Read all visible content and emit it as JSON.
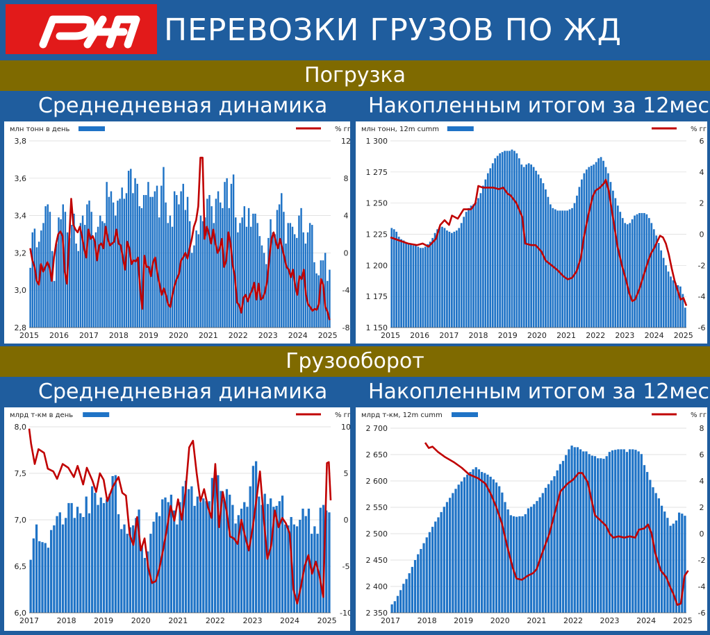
{
  "header": {
    "title": "ПЕРЕВОЗКИ ГРУЗОВ ПО ЖД",
    "logo_text": "РЖД"
  },
  "sections": [
    {
      "title": "Погрузка",
      "left_title": "Среднедневная динамика",
      "right_title": "Накопленным итогом за 12мес"
    },
    {
      "title": "Грузооборот",
      "left_title": "Среднедневная динамика",
      "right_title": "Накопленным итогом за 12мес"
    }
  ],
  "colors": {
    "bar": "#1f73c6",
    "line": "#c00000",
    "band": "#7f6a00",
    "header": "#1f5d9e",
    "logo": "#e21a1a"
  },
  "chart_data": [
    {
      "type": "bar",
      "title": "",
      "legend": {
        "bar": "млн тонн в день",
        "line": "% гг"
      },
      "x_ticks": [
        "2015",
        "2016",
        "2017",
        "2018",
        "2019",
        "2020",
        "2021",
        "2022",
        "2023",
        "2024",
        "2025"
      ],
      "x_range": [
        2015,
        2025.1
      ],
      "y_left": {
        "min": 2.8,
        "max": 3.8,
        "ticks": [
          "2,8",
          "3,0",
          "3,2",
          "3,4",
          "3,6",
          "3,8"
        ]
      },
      "y_right": {
        "min": -8,
        "max": 12,
        "ticks": [
          "-8",
          "-4",
          "0",
          "4",
          "8",
          "12"
        ]
      },
      "bar_values": [
        3.12,
        3.31,
        3.33,
        3.23,
        3.26,
        3.32,
        3.36,
        3.45,
        3.46,
        3.42,
        3.21,
        3.05,
        3.25,
        3.39,
        3.38,
        3.46,
        3.42,
        3.31,
        3.28,
        3.35,
        3.41,
        3.25,
        3.21,
        3.36,
        3.4,
        3.35,
        3.46,
        3.48,
        3.42,
        3.27,
        3.31,
        3.34,
        3.4,
        3.37,
        3.36,
        3.58,
        3.5,
        3.53,
        3.47,
        3.4,
        3.48,
        3.49,
        3.55,
        3.49,
        3.52,
        3.64,
        3.65,
        3.52,
        3.6,
        3.57,
        3.45,
        3.44,
        3.51,
        3.51,
        3.58,
        3.5,
        3.5,
        3.53,
        3.56,
        3.39,
        3.56,
        3.66,
        3.47,
        3.36,
        3.4,
        3.34,
        3.53,
        3.51,
        3.46,
        3.53,
        3.57,
        3.43,
        3.5,
        3.37,
        3.2,
        3.24,
        3.32,
        3.3,
        3.4,
        3.37,
        3.39,
        3.49,
        3.51,
        3.45,
        3.36,
        3.49,
        3.53,
        3.47,
        3.44,
        3.58,
        3.6,
        3.44,
        3.57,
        3.62,
        3.39,
        3.31,
        3.36,
        3.39,
        3.45,
        3.34,
        3.44,
        3.34,
        3.41,
        3.41,
        3.36,
        3.29,
        3.24,
        3.2,
        3.14,
        3.28,
        3.38,
        3.31,
        3.3,
        3.43,
        3.46,
        3.52,
        3.42,
        3.25,
        3.36,
        3.36,
        3.34,
        3.3,
        3.28,
        3.4,
        3.44,
        3.31,
        3.25,
        3.31,
        3.36,
        3.35,
        3.15,
        3.09,
        3.08,
        3.16,
        3.16,
        3.2,
        3.05,
        3.11
      ],
      "line_values": [
        0.5,
        -0.8,
        -1.5,
        -3,
        -3.4,
        -1.2,
        -2,
        -1.5,
        -1,
        -1.6,
        -3,
        -0.5,
        1,
        2,
        2.3,
        1.8,
        -2,
        -3.3,
        1,
        5.8,
        3,
        2.5,
        2.2,
        2.8,
        1.8,
        0.5,
        -0.5,
        2.5,
        1.5,
        1.8,
        1.2,
        -0.8,
        0.8,
        1,
        0.5,
        2.8,
        1.5,
        0.8,
        1,
        1.2,
        2.5,
        1,
        0.8,
        -0.5,
        -1.8,
        1.2,
        0.5,
        -1.2,
        -0.8,
        -0.9,
        -0.5,
        -3.8,
        -6,
        -0.3,
        -1.5,
        -1.5,
        -2.5,
        -1,
        -0.5,
        -2.2,
        -3.3,
        -4.5,
        -3.8,
        -4.5,
        -5.5,
        -5.8,
        -4.5,
        -3.5,
        -2.8,
        -2.3,
        -0.8,
        -0.5,
        0,
        -0.6,
        0.5,
        1.5,
        2.8,
        3.5,
        5,
        10.2,
        10.2,
        1.5,
        2.8,
        2,
        1,
        2.5,
        1,
        0,
        0.5,
        1.5,
        -1.5,
        -0.8,
        2.2,
        1,
        -1.3,
        -2.5,
        -5.3,
        -5.6,
        -6.4,
        -4.8,
        -4.5,
        -5.2,
        -4.5,
        -4,
        -3.2,
        -5,
        -3.3,
        -5,
        -4.8,
        -4.2,
        -3,
        -0.5,
        1.5,
        2.2,
        1.2,
        0.5,
        1.5,
        0.5,
        -0.5,
        -1.5,
        -1.8,
        -2.6,
        -1.8,
        -3.5,
        -4.5,
        -2.5,
        -2.8,
        -1.8,
        -4.5,
        -5.5,
        -5.8,
        -6.2,
        -6,
        -6.1,
        -5.5,
        -2.8,
        -3.4,
        -5.8,
        -6.3,
        -7.2
      ]
    },
    {
      "type": "bar",
      "title": "",
      "legend": {
        "bar": "млн  тонн, 12m cumm",
        "line": "% гг"
      },
      "x_ticks": [
        "2015",
        "2016",
        "2017",
        "2018",
        "2019",
        "2020",
        "2021",
        "2022",
        "2023",
        "2024",
        "2025"
      ],
      "x_range": [
        2015,
        2025.1
      ],
      "y_left": {
        "min": 1150,
        "max": 1300,
        "ticks": [
          "1 150",
          "1 175",
          "1 200",
          "1 225",
          "1 250",
          "1 275",
          "1 300"
        ]
      },
      "y_right": {
        "min": -6,
        "max": 6,
        "ticks": [
          "-6",
          "-4",
          "-2",
          "0",
          "2",
          "4",
          "6"
        ]
      },
      "bar_values": [
        1230,
        1229,
        1227,
        1223,
        1221,
        1220,
        1218,
        1218,
        1217,
        1216,
        1216,
        1215,
        1214,
        1214,
        1215,
        1217,
        1219,
        1222,
        1226,
        1229,
        1231,
        1231,
        1230,
        1228,
        1227,
        1226,
        1227,
        1228,
        1230,
        1234,
        1239,
        1243,
        1246,
        1248,
        1249,
        1251,
        1254,
        1258,
        1264,
        1269,
        1274,
        1278,
        1282,
        1286,
        1288,
        1290,
        1291,
        1292,
        1292,
        1292,
        1293,
        1292,
        1290,
        1286,
        1281,
        1279,
        1281,
        1282,
        1281,
        1279,
        1276,
        1273,
        1270,
        1266,
        1261,
        1255,
        1249,
        1246,
        1245,
        1244,
        1244,
        1244,
        1244,
        1244,
        1245,
        1246,
        1250,
        1256,
        1263,
        1269,
        1274,
        1277,
        1279,
        1280,
        1281,
        1283,
        1286,
        1287,
        1284,
        1279,
        1274,
        1267,
        1260,
        1254,
        1248,
        1243,
        1238,
        1234,
        1233,
        1234,
        1237,
        1240,
        1241,
        1242,
        1242,
        1242,
        1241,
        1238,
        1234,
        1229,
        1224,
        1218,
        1212,
        1206,
        1200,
        1195,
        1191,
        1188,
        1186,
        1184,
        1183,
        1177,
        1166
      ]
    },
    {
      "type": "bar",
      "title": "",
      "legend": {
        "bar": "млрд т-км в день",
        "line": "% гг"
      },
      "x_ticks": [
        "2017",
        "2018",
        "2019",
        "2020",
        "2021",
        "2022",
        "2023",
        "2024",
        "2025"
      ],
      "x_range": [
        2017,
        2025.1
      ],
      "y_left": {
        "min": 6.0,
        "max": 8.0,
        "ticks": [
          "6,0",
          "6,5",
          "7,0",
          "7,5",
          "8,0"
        ]
      },
      "y_right": {
        "min": -10,
        "max": 10,
        "ticks": [
          "-10",
          "-5",
          "0",
          "5",
          "10"
        ]
      },
      "bar_values": [
        6.57,
        6.8,
        6.95,
        6.77,
        6.76,
        6.75,
        6.7,
        6.89,
        6.94,
        7.04,
        7.08,
        6.95,
        7.02,
        7.18,
        7.18,
        7.02,
        7.14,
        7.07,
        7.03,
        7.25,
        7.07,
        7.36,
        7.29,
        7.16,
        7.24,
        7.18,
        7.22,
        7.28,
        7.47,
        7.48,
        7.06,
        6.9,
        6.95,
        6.85,
        6.92,
        6.94,
        7.02,
        7.11,
        6.71,
        6.59,
        6.66,
        6.85,
        6.98,
        7.08,
        7.04,
        7.22,
        7.24,
        7.19,
        7.27,
        7.1,
        6.95,
        7.19,
        7.36,
        7.42,
        7.33,
        7.36,
        7.15,
        7.25,
        7.19,
        7.23,
        7.2,
        7.2,
        7.45,
        7.52,
        7.48,
        7.31,
        7.22,
        7.33,
        7.27,
        7.16,
        6.96,
        7.05,
        7.12,
        7.19,
        7.14,
        7.36,
        7.58,
        7.63,
        7.25,
        7.16,
        7.28,
        7.17,
        7.23,
        7.14,
        7.15,
        7.2,
        7.26,
        6.95,
        6.94,
        7.03,
        6.95,
        6.93,
        7.0,
        7.12,
        7.04,
        7.12,
        6.85,
        6.93,
        6.85,
        7.13,
        7.16,
        7.1,
        7.08
      ]
    },
    {
      "type": "bar",
      "title": "",
      "legend": {
        "bar": "млрд  т-км, 12m cumm",
        "line": "% гг"
      },
      "x_ticks": [
        "2017",
        "2018",
        "2019",
        "2020",
        "2021",
        "2022",
        "2023",
        "2024",
        "2025"
      ],
      "x_range": [
        2017,
        2025.1
      ],
      "y_left": {
        "min": 2350,
        "max": 2700,
        "ticks": [
          "2 350",
          "2 400",
          "2 450",
          "2 500",
          "2 550",
          "2 600",
          "2 650",
          "2 700"
        ]
      },
      "y_right": {
        "min": -6,
        "max": 8,
        "ticks": [
          "-6",
          "-4",
          "-2",
          "0",
          "2",
          "4",
          "6",
          "8"
        ]
      },
      "bar_values": [
        2366,
        2372,
        2382,
        2393,
        2405,
        2414,
        2425,
        2437,
        2450,
        2461,
        2471,
        2482,
        2493,
        2503,
        2513,
        2523,
        2531,
        2541,
        2551,
        2560,
        2568,
        2577,
        2585,
        2593,
        2599,
        2607,
        2612,
        2617,
        2622,
        2626,
        2622,
        2617,
        2615,
        2612,
        2608,
        2603,
        2597,
        2590,
        2578,
        2560,
        2546,
        2535,
        2533,
        2532,
        2533,
        2533,
        2537,
        2548,
        2551,
        2556,
        2562,
        2569,
        2577,
        2587,
        2594,
        2601,
        2609,
        2620,
        2632,
        2638,
        2649,
        2660,
        2667,
        2664,
        2664,
        2660,
        2656,
        2656,
        2651,
        2648,
        2647,
        2643,
        2643,
        2642,
        2647,
        2655,
        2658,
        2659,
        2660,
        2660,
        2660,
        2655,
        2660,
        2660,
        2659,
        2656,
        2651,
        2630,
        2617,
        2602,
        2588,
        2577,
        2567,
        2553,
        2542,
        2530,
        2515,
        2519,
        2525,
        2540,
        2538,
        2534
      ]
    }
  ]
}
